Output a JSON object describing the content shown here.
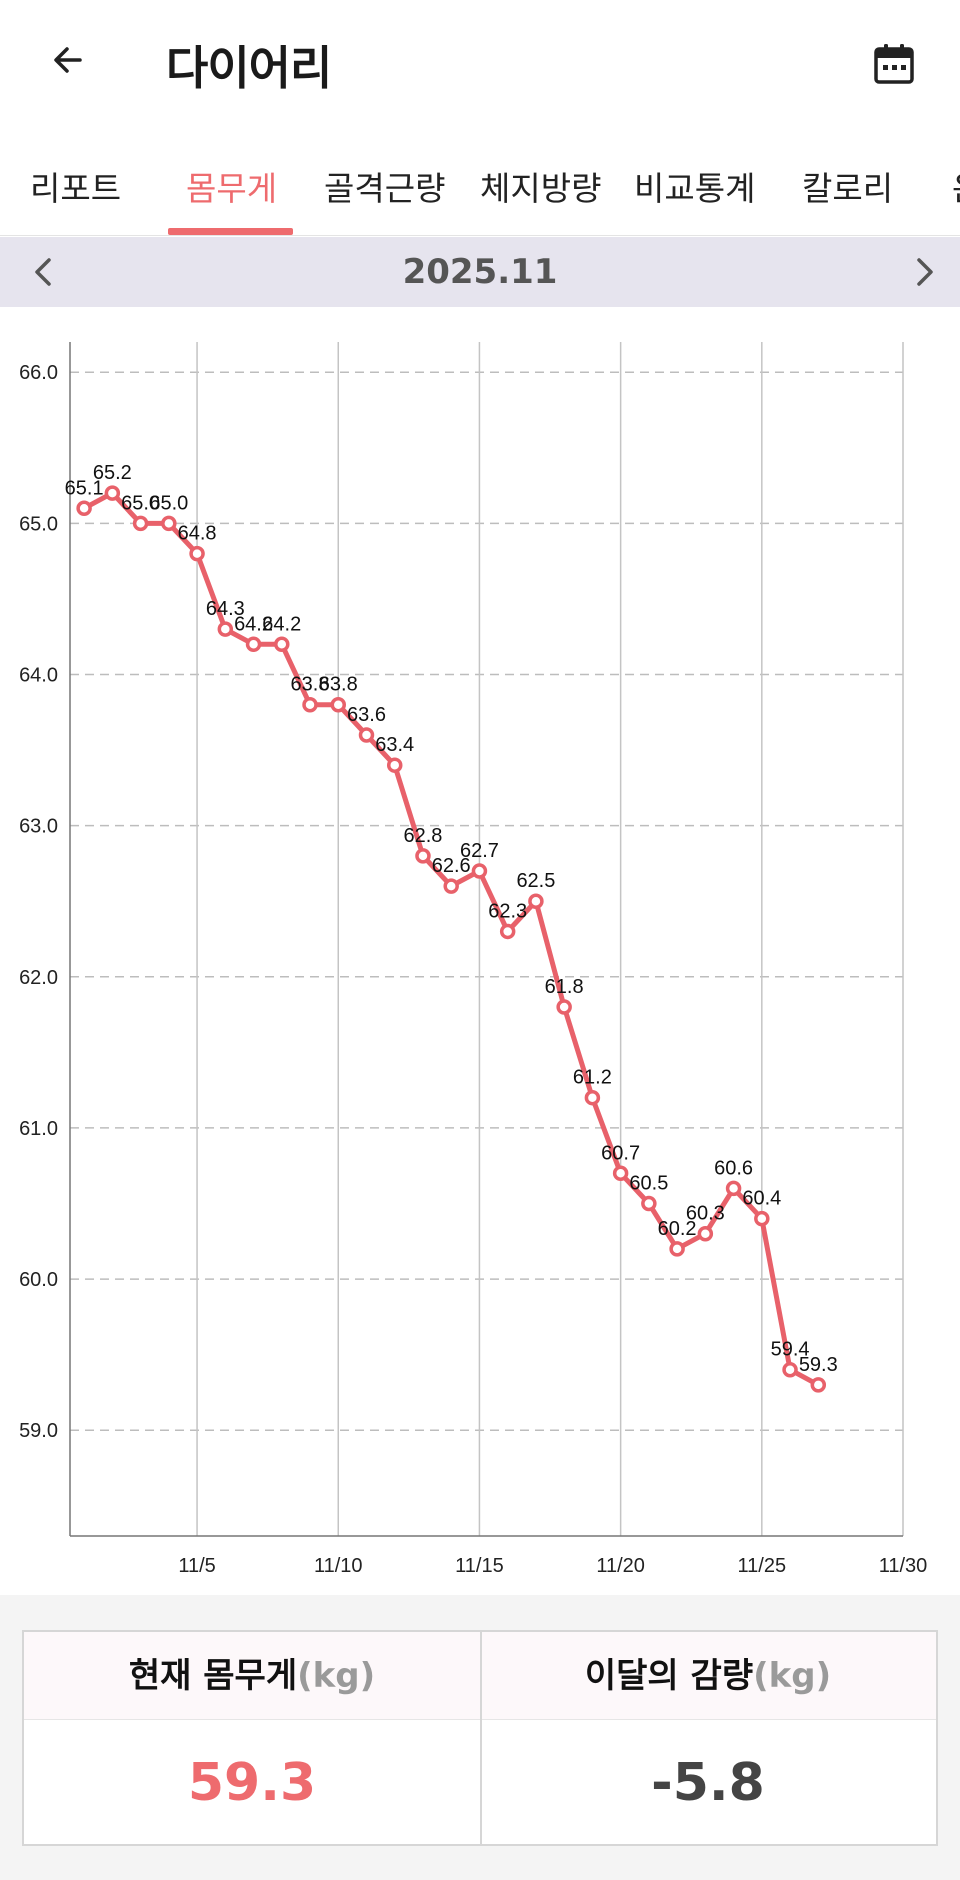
{
  "header": {
    "title": "다이어리",
    "back_icon": "arrow-left-icon",
    "calendar_icon": "calendar-icon"
  },
  "tabs": [
    {
      "label": "리포트",
      "active": false
    },
    {
      "label": "몸무게",
      "active": true
    },
    {
      "label": "골격근량",
      "active": false
    },
    {
      "label": "체지방량",
      "active": false
    },
    {
      "label": "비교통계",
      "active": false
    },
    {
      "label": "칼로리",
      "active": false
    },
    {
      "label": "운",
      "active": false
    }
  ],
  "month_nav": {
    "label": "2025.11",
    "prev_icon": "chevron-left-icon",
    "next_icon": "chevron-right-icon"
  },
  "colors": {
    "accent": "#ee6b6e",
    "month_bar": "#e6e4ee",
    "line": "#e8616a"
  },
  "chart_data": {
    "type": "line",
    "title": "",
    "xlabel": "",
    "ylabel": "",
    "x_ticks": [
      "11/5",
      "11/10",
      "11/15",
      "11/20",
      "11/25",
      "11/30"
    ],
    "x_tick_days": [
      5,
      10,
      15,
      20,
      25,
      30
    ],
    "x_range": [
      0.5,
      30
    ],
    "y_ticks": [
      "66.0",
      "65.0",
      "64.0",
      "63.0",
      "62.0",
      "61.0",
      "60.0",
      "59.0"
    ],
    "ylim": [
      58.3,
      66.2
    ],
    "grid": true,
    "series": [
      {
        "name": "",
        "points": [
          {
            "day": 1,
            "value": 65.1,
            "label": "65.1"
          },
          {
            "day": 2,
            "value": 65.2,
            "label": "65.2"
          },
          {
            "day": 3,
            "value": 65.0,
            "label": "65.0"
          },
          {
            "day": 4,
            "value": 65.0,
            "label": "65.0"
          },
          {
            "day": 5,
            "value": 64.8,
            "label": "64.8"
          },
          {
            "day": 6,
            "value": 64.3,
            "label": "64.3"
          },
          {
            "day": 7,
            "value": 64.2,
            "label": "64.2"
          },
          {
            "day": 8,
            "value": 64.2,
            "label": "64.2"
          },
          {
            "day": 9,
            "value": 63.8,
            "label": "63.8"
          },
          {
            "day": 10,
            "value": 63.8,
            "label": "63.8"
          },
          {
            "day": 11,
            "value": 63.6,
            "label": "63.6"
          },
          {
            "day": 12,
            "value": 63.4,
            "label": "63.4"
          },
          {
            "day": 13,
            "value": 62.8,
            "label": "62.8"
          },
          {
            "day": 14,
            "value": 62.6,
            "label": "62.6"
          },
          {
            "day": 15,
            "value": 62.7,
            "label": "62.7"
          },
          {
            "day": 16,
            "value": 62.3,
            "label": "62.3"
          },
          {
            "day": 17,
            "value": 62.5,
            "label": "62.5"
          },
          {
            "day": 18,
            "value": 61.8,
            "label": "61.8"
          },
          {
            "day": 19,
            "value": 61.2,
            "label": "61.2"
          },
          {
            "day": 20,
            "value": 60.7,
            "label": "60.7"
          },
          {
            "day": 21,
            "value": 60.5,
            "label": "60.5"
          },
          {
            "day": 22,
            "value": 60.2,
            "label": "60.2"
          },
          {
            "day": 23,
            "value": 60.3,
            "label": "60.3"
          },
          {
            "day": 24,
            "value": 60.6,
            "label": "60.6"
          },
          {
            "day": 25,
            "value": 60.4,
            "label": "60.4"
          },
          {
            "day": 26,
            "value": 59.4,
            "label": "59.4"
          },
          {
            "day": 27,
            "value": 59.3,
            "label": "59.3"
          }
        ]
      }
    ]
  },
  "summary": {
    "current": {
      "title": "현재 몸무게",
      "unit": "(kg)",
      "value": "59.3"
    },
    "loss": {
      "title": "이달의 감량",
      "unit": "(kg)",
      "value": "-5.8"
    }
  }
}
